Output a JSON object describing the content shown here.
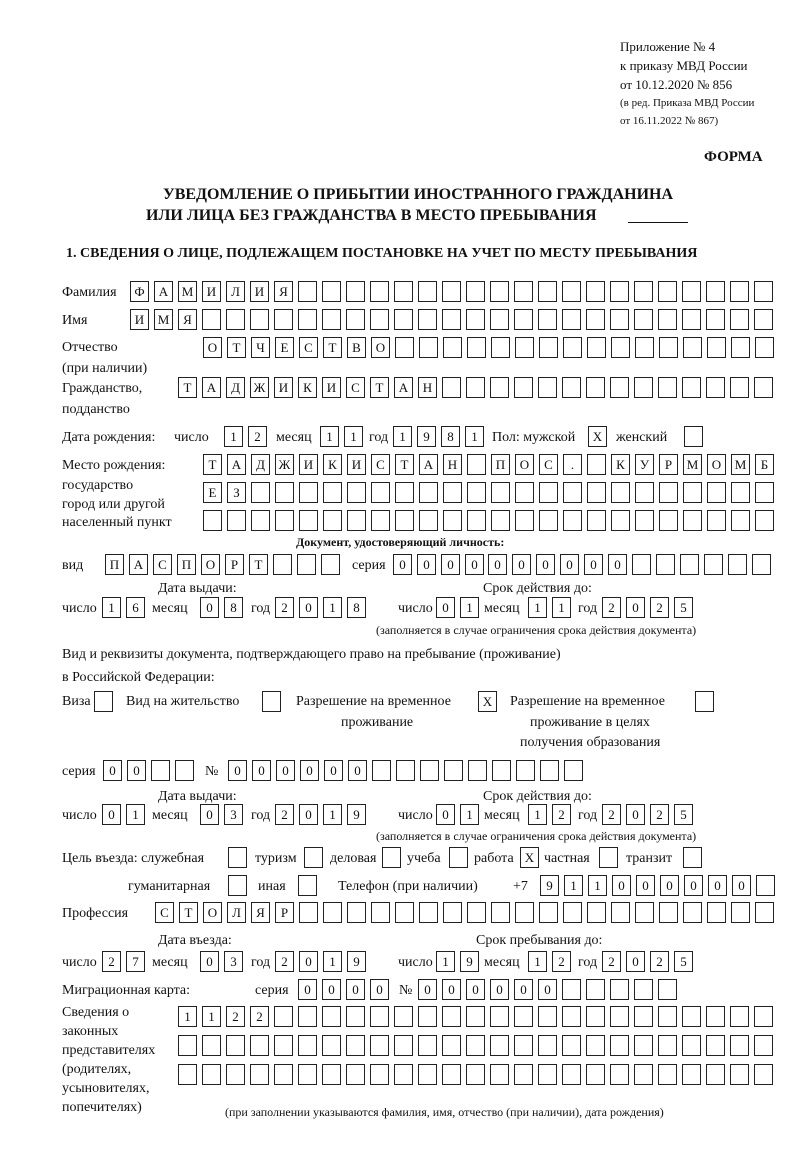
{
  "header": {
    "appendix": "Приложение № 4",
    "order": "к приказу МВД России",
    "order_date": "от 10.12.2020 № 856",
    "edition1": "(в ред. Приказа МВД России",
    "edition2": "от 16.11.2022 № 867)",
    "form": "ФОРМА",
    "title1": "УВЕДОМЛЕНИЕ О ПРИБЫТИИ ИНОСТРАННОГО ГРАЖДАНИНА",
    "title2": "ИЛИ ЛИЦА БЕЗ ГРАЖДАНСТВА В МЕСТО ПРЕБЫВАНИЯ",
    "section1": "1. СВЕДЕНИЯ О ЛИЦЕ, ПОДЛЕЖАЩЕМ ПОСТАНОВКЕ НА УЧЕТ ПО МЕСТУ ПРЕБЫВАНИЯ"
  },
  "labels": {
    "surname": "Фамилия",
    "name": "Имя",
    "patronymic": "Отчество",
    "patronymic2": "(при наличии)",
    "citizenship": "Гражданство,",
    "citizenship2": "подданство",
    "birth_date": "Дата рождения:",
    "day": "число",
    "month": "месяц",
    "year": "год",
    "sex": "Пол: мужской",
    "female": "женский",
    "birthplace": "Место рождения:",
    "birthplace2": "государство",
    "birthplace3": "город или другой",
    "birthplace4": "населенный пункт",
    "id_doc": "Документ, удостоверяющий личность:",
    "kind": "вид",
    "series": "серия",
    "number": "№",
    "issue_date": "Дата выдачи:",
    "valid_until": "Срок действия до:",
    "validity_note": "(заполняется в случае ограничения срока действия документа)",
    "right_doc1": "Вид и реквизиты документа, подтверждающего право на пребывание (проживание)",
    "right_doc2": "в Российской Федерации:",
    "visa": "Виза",
    "residence": "Вид на жительство",
    "trp1": "Разрешение на временное",
    "trp2": "проживание",
    "trpe1": "Разрешение на временное",
    "trpe2": "проживание в целях",
    "trpe3": "получения образования",
    "purpose": "Цель въезда: служебная",
    "tourism": "туризм",
    "business": "деловая",
    "study": "учеба",
    "work": "работа",
    "private": "частная",
    "transit": "транзит",
    "humanitarian": "гуманитарная",
    "other": "иная",
    "phone": "Телефон (при наличии)",
    "phone_prefix": "+7",
    "profession": "Профессия",
    "entry_date": "Дата въезда:",
    "stay_until": "Срок пребывания до:",
    "migration_card": "Миграционная карта:",
    "reps1": "Сведения о",
    "reps2": "законных",
    "reps3": "представителях",
    "reps4": "(родителях,",
    "reps5": "усыновителях,",
    "reps6": "попечителях)",
    "reps_note": "(при заполнении указываются фамилия, имя, отчество (при наличии), дата рождения)"
  },
  "values": {
    "surname": "ФАМИЛИЯ",
    "name": "ИМЯ",
    "patronymic": "ОТЧЕСТВО",
    "citizenship": "ТАДЖИКИСТАН",
    "birth_day": "12",
    "birth_month": "11",
    "birth_year": "1981",
    "male": "X",
    "female": "",
    "birthplace1": "ТАДЖИКИСТАН ПОС. КУРМОМБ",
    "birthplace2": "ЕЗ",
    "birthplace3": "",
    "doc_kind": "ПАСПОРТ",
    "doc_series": "0000",
    "doc_number": "000000",
    "doc_issue_day": "16",
    "doc_issue_month": "08",
    "doc_issue_year": "2018",
    "doc_valid_day": "01",
    "doc_valid_month": "11",
    "doc_valid_year": "2025",
    "visa": "",
    "residence": "",
    "trp": "X",
    "trpe": "",
    "right_series": "00",
    "right_number": "000000",
    "right_issue_day": "01",
    "right_issue_month": "03",
    "right_issue_year": "2019",
    "right_valid_day": "01",
    "right_valid_month": "12",
    "right_valid_year": "2025",
    "p_official": "",
    "p_tourism": "",
    "p_business": "",
    "p_study": "",
    "p_work": "X",
    "p_private": "",
    "p_transit": "",
    "p_humanitarian": "",
    "p_other": "",
    "phone": "911000000",
    "profession": "СТОЛЯР",
    "entry_day": "27",
    "entry_month": "03",
    "entry_year": "2019",
    "stay_day": "19",
    "stay_month": "12",
    "stay_year": "2025",
    "mc_series": "0000",
    "mc_number": "000000",
    "reps1": "1122",
    "reps2": "",
    "reps3": ""
  }
}
